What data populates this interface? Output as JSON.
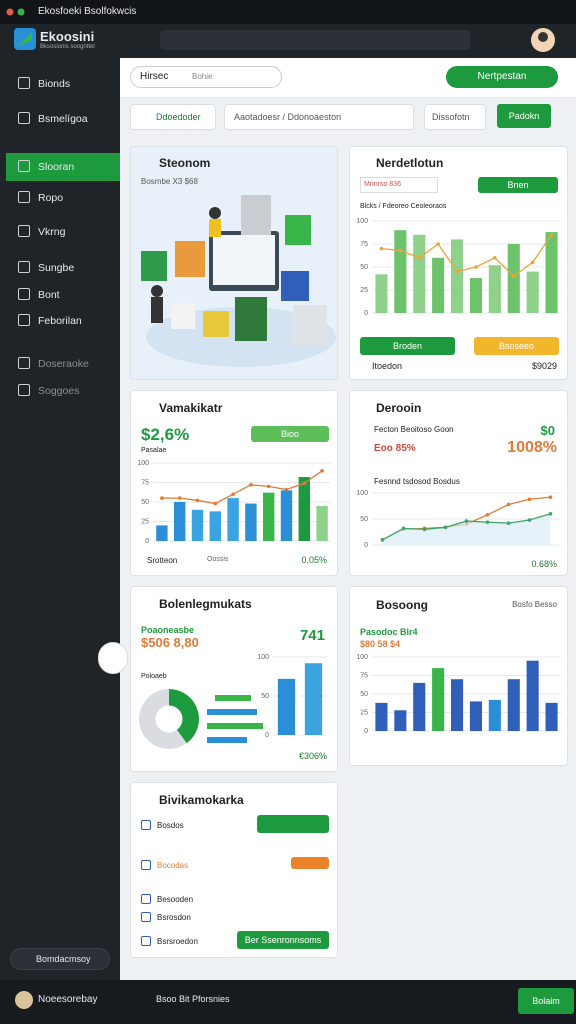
{
  "browser": {
    "tab": "Ekosfoeki Bsolfokwcis"
  },
  "app": {
    "logo": "Ekoosini",
    "logo_sub": "Bksosionis soognttel"
  },
  "sidebar": {
    "items": [
      "Bionds",
      "Bsmelígoa",
      "Slooran",
      "Ropo",
      "Vkrng",
      "Sungbe",
      "Bont",
      "Feborilan",
      "Doseraoke",
      "Soggoes"
    ],
    "footer": "Bomdacmsoy"
  },
  "toolbar": {
    "search": "Hirsec",
    "search2": "Bohie",
    "button": "Nertpestan"
  },
  "filters": {
    "search": "Ddoedoder",
    "range": "Aaotadoesr / Ddonoaeston",
    "filter": "Dissofotn",
    "action": "Padokn"
  },
  "cards": [
    {
      "title": "Steonom",
      "subtitle": "Bosmbe X3 $68"
    },
    {
      "title": "Nerdetlotun",
      "field": "Mnnrso 836",
      "button": "Bnen",
      "label": "Blcks / Fdeoreo Ceoleoraos",
      "chart": {
        "type": "bar",
        "ylim": [
          0,
          100
        ],
        "yticks": [
          0,
          25,
          50,
          75,
          100
        ],
        "values": [
          42,
          90,
          85,
          60,
          80,
          38,
          52,
          75,
          45,
          88
        ],
        "colors": [
          "#8fd18a",
          "#6cc36a",
          "#8fd18a",
          "#6cc36a",
          "#8fd18a",
          "#6cc36a",
          "#8fd18a",
          "#6cc36a",
          "#8fd18a",
          "#6cc36a"
        ],
        "line": {
          "color": "#e9a63a",
          "values": [
            70,
            68,
            60,
            75,
            45,
            50,
            60,
            40,
            55,
            85
          ]
        }
      },
      "button2": "Broden",
      "button3": "Bsoseeo",
      "footer_left": "Itoedon",
      "footer_right": "$9029"
    },
    {
      "title": "Vamakikatr",
      "value": "$2,6%",
      "button": "Bioo",
      "label": "Pasalae",
      "chart": {
        "type": "bar",
        "ylim": [
          0,
          100
        ],
        "yticks": [
          0,
          25,
          50,
          75,
          100
        ],
        "values": [
          20,
          50,
          40,
          38,
          55,
          48,
          62,
          65,
          82,
          45
        ],
        "colors": [
          "#2a8fd6",
          "#2a8fd6",
          "#3aa3e0",
          "#3aa3e0",
          "#3aa3e0",
          "#2a8fd6",
          "#3ab54a",
          "#2a8fd6",
          "#1e9a3e",
          "#8fd18a"
        ],
        "line": {
          "color": "#e07b39",
          "values": [
            55,
            55,
            52,
            48,
            60,
            72,
            70,
            66,
            74,
            90
          ]
        }
      },
      "footer_left": "Srotteon",
      "footer_mid": "Oossis",
      "footer_right": "0.05%"
    },
    {
      "title": "Derooin",
      "row1": "Fecton Beoitoso Goon",
      "row1_value": "$0",
      "row2": "Eoo 85%",
      "row2_value": "1008%",
      "label": "Fesnnd tsdosod Bosdus",
      "chart": {
        "type": "line",
        "ylim": [
          0,
          100
        ],
        "yticks": [
          0,
          50,
          100
        ],
        "series": [
          {
            "color": "#e07b39",
            "values": [
              10,
              30,
              32,
              34,
              40,
              58,
              78,
              88,
              92
            ]
          },
          {
            "color": "#3aa76a",
            "values": [
              10,
              32,
              30,
              34,
              46,
              44,
              42,
              48,
              60
            ]
          }
        ]
      },
      "footer_right": "0.68%"
    },
    {
      "title": "Bolenlegmukats",
      "row1": "Poaoneasbe",
      "row2": "$506 8,80",
      "value": "741",
      "label": "Poloaeb",
      "donut": {
        "type": "pie",
        "values": [
          40,
          60
        ],
        "colors": [
          "#1e9a3e",
          "#d9dde2"
        ]
      },
      "chart": {
        "type": "bar",
        "ylim": [
          0,
          100
        ],
        "yticks": [
          0,
          50,
          100
        ],
        "values": [
          72,
          92
        ],
        "colors": [
          "#2a8fd6",
          "#3aa3e0"
        ]
      },
      "footer_right": "€306%"
    },
    {
      "title": "Bosoong",
      "right": "Bosfo Besso",
      "row1": "Pasodoc Blr4",
      "row2": "$80 58 $4",
      "chart": {
        "type": "bar",
        "ylim": [
          0,
          100
        ],
        "yticks": [
          0,
          25,
          50,
          75,
          100
        ],
        "values": [
          38,
          28,
          65,
          85,
          70,
          40,
          42,
          70,
          95,
          38
        ],
        "colors": [
          "#2f5fb8",
          "#2f5fb8",
          "#2f5fb8",
          "#3ab54a",
          "#2f5fb8",
          "#2f5fb8",
          "#2a8fd6",
          "#2f5fb8",
          "#2f5fb8",
          "#2f5fb8"
        ]
      }
    },
    {
      "title": "Bivikamokarka",
      "rows": [
        "Bosdos",
        "Bocodas",
        "Besooden",
        "Bsrosdon",
        "Bsrsroedon"
      ],
      "button": "Ber Ssenronnsoms"
    }
  ],
  "footer": {
    "user": "Noeesorebay",
    "status": "Bsoo Bit Pforsnies",
    "button": "Bolaim"
  }
}
